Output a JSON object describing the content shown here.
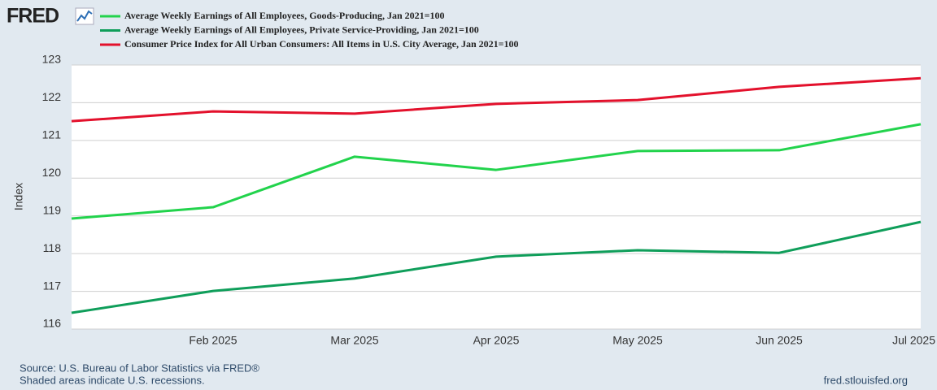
{
  "chart_data": {
    "type": "line",
    "logo": "FRED",
    "y_label": "Index",
    "categories": [
      null,
      "Feb 2025",
      "Mar 2025",
      "Apr 2025",
      "May 2025",
      "Jun 2025",
      "Jul 2025"
    ],
    "series": [
      {
        "name": "Average Weekly Earnings of All Employees, Goods-Producing, Jan 2021=100",
        "color": "#22d34c",
        "values": [
          118.93,
          119.23,
          120.57,
          120.22,
          120.72,
          120.74,
          121.43
        ]
      },
      {
        "name": "Average Weekly Earnings of All Employees, Private Service-Providing, Jan 2021=100",
        "color": "#0f9e5a",
        "values": [
          116.43,
          117.01,
          117.34,
          117.92,
          118.09,
          118.02,
          118.84
        ]
      },
      {
        "name": "Consumer Price Index for All Urban Consumers: All Items in U.S. City Average, Jan 2021=100",
        "color": "#e3112c",
        "values": [
          121.51,
          121.77,
          121.71,
          121.97,
          122.07,
          122.42,
          122.65
        ]
      }
    ],
    "ylim": [
      116,
      123
    ],
    "yticks": [
      116,
      117,
      118,
      119,
      120,
      121,
      122,
      123
    ],
    "grid": true,
    "source": "Source: U.S. Bureau of Labor Statistics via FRED®",
    "note": "Shaded areas indicate U.S. recessions.",
    "website": "fred.stlouisfed.org"
  }
}
